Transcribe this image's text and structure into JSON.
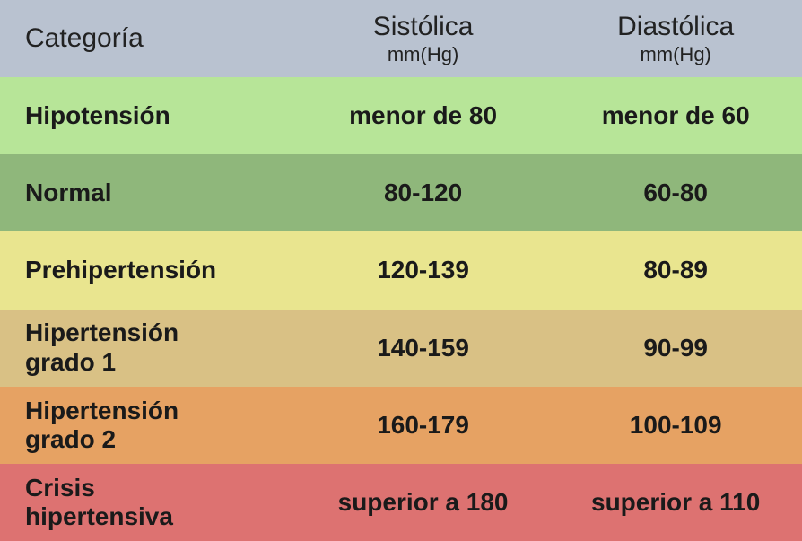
{
  "table": {
    "header": {
      "category": "Categoría",
      "systolic_main": "Sistólica",
      "systolic_sub": "mm(Hg)",
      "diastolic_main": "Diastólica",
      "diastolic_sub": "mm(Hg)",
      "background_color": "#b9c2d0",
      "main_fontsize": 30,
      "sub_fontsize": 22
    },
    "rows": [
      {
        "category": "Hipotensión",
        "systolic": "menor de 80",
        "diastolic": "menor de 60",
        "background_color": "#b7e598"
      },
      {
        "category": "Normal",
        "systolic": "80-120",
        "diastolic": "60-80",
        "background_color": "#8fb77b"
      },
      {
        "category": "Prehipertensión",
        "systolic": "120-139",
        "diastolic": "80-89",
        "background_color": "#e9e58f"
      },
      {
        "category": "Hipertensión\n   grado 1",
        "systolic": "140-159",
        "diastolic": "90-99",
        "background_color": "#d9c185"
      },
      {
        "category": "Hipertensión\n   grado 2",
        "systolic": "160-179",
        "diastolic": "100-109",
        "background_color": "#e6a263"
      },
      {
        "category": "Crisis\nhipertensiva",
        "systolic": "superior a 180",
        "diastolic": "superior a 110",
        "background_color": "#dd7271"
      }
    ],
    "data_fontsize": 28,
    "data_fontweight": 700,
    "col_widths_pct": [
      37,
      31.5,
      31.5
    ]
  }
}
